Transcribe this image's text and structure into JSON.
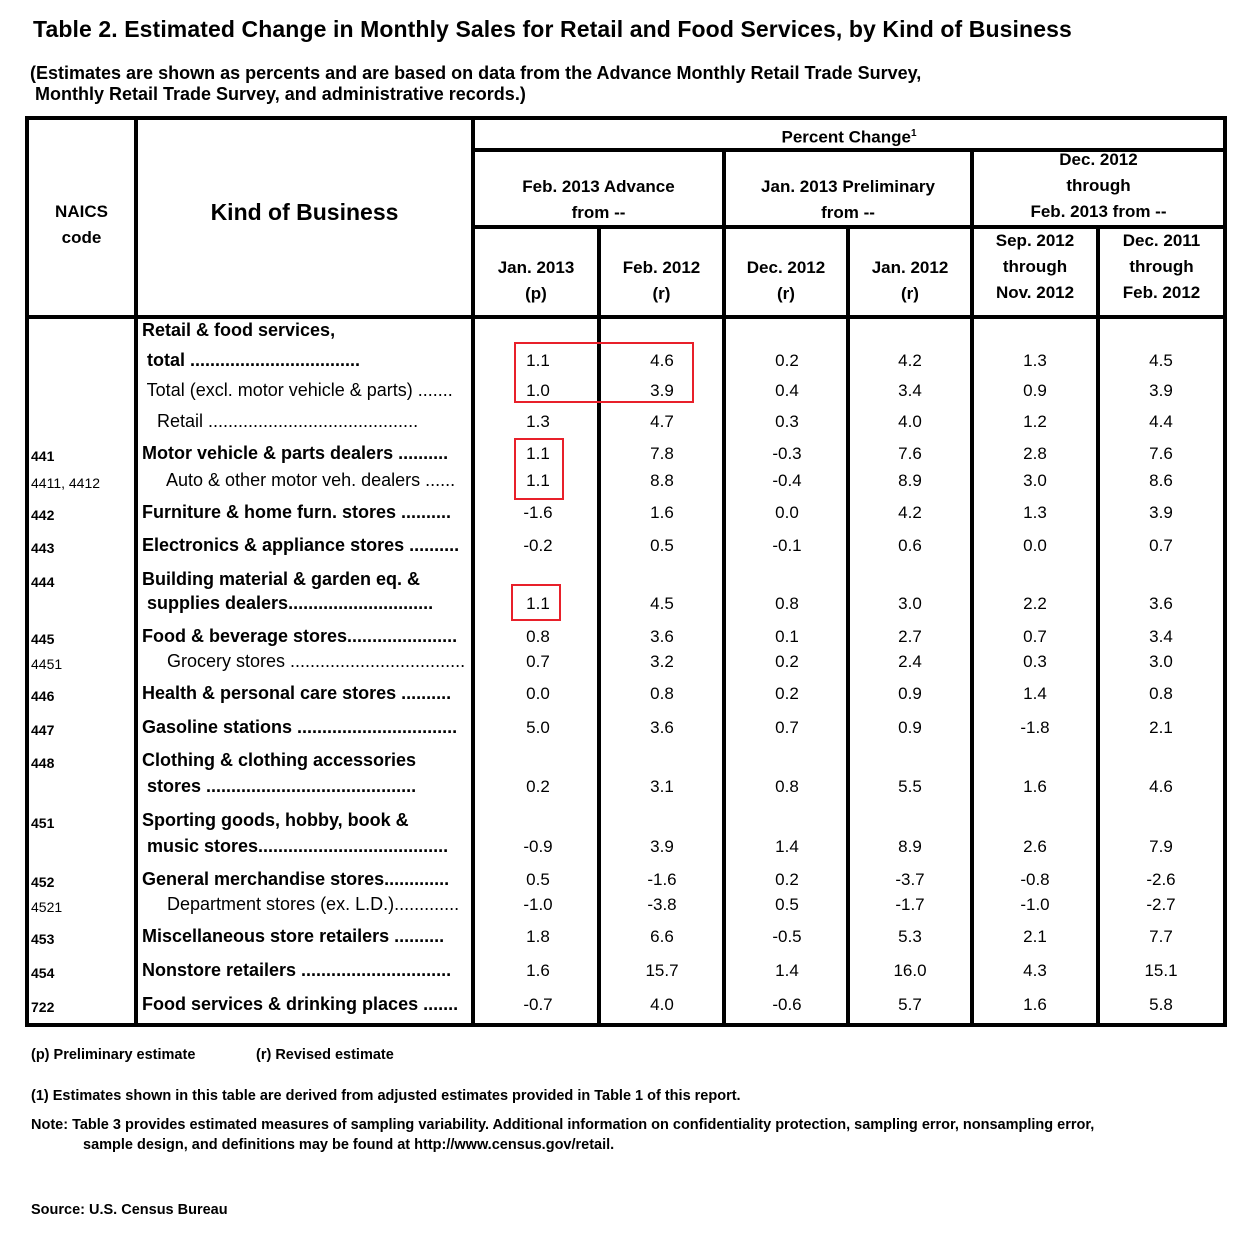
{
  "title": "Table 2.  Estimated Change in Monthly Sales for Retail and Food Services, by Kind of Business",
  "subtitle": "(Estimates are shown as percents and are based on data from the Advance Monthly Retail Trade Survey,\n Monthly Retail Trade Survey, and administrative records.)",
  "header": {
    "naics_code": [
      "NAICS",
      "code"
    ],
    "kind_of_business": "Kind of Business",
    "percent_change": "Percent Change",
    "percent_change_footnote": "1",
    "groups": [
      {
        "label": [
          "Feb. 2013 Advance",
          "from --"
        ]
      },
      {
        "label": [
          "Jan. 2013 Preliminary",
          "from --"
        ]
      },
      {
        "label": [
          "Dec. 2012",
          "through",
          "Feb. 2013 from --"
        ]
      }
    ],
    "columns": [
      {
        "label": [
          "Jan. 2013",
          "(p)"
        ]
      },
      {
        "label": [
          "Feb. 2012",
          "(r)"
        ]
      },
      {
        "label": [
          "Dec. 2012",
          "(r)"
        ]
      },
      {
        "label": [
          "Jan. 2012",
          "(r)"
        ]
      },
      {
        "label": [
          "Sep. 2012",
          "through",
          "Nov. 2012"
        ]
      },
      {
        "label": [
          "Dec. 2011",
          "through",
          "Feb. 2012"
        ]
      }
    ]
  },
  "rows": [
    {
      "code": "",
      "label": "Retail & food services,",
      "bold": true,
      "values": []
    },
    {
      "code": "",
      "label": " total ..................................",
      "bold": true,
      "values": [
        "1.1",
        "4.6",
        "0.2",
        "4.2",
        "1.3",
        "4.5"
      ]
    },
    {
      "code": "",
      "label": " Total (excl. motor vehicle & parts) .......",
      "bold": false,
      "values": [
        "1.0",
        "3.9",
        "0.4",
        "3.4",
        "0.9",
        "3.9"
      ]
    },
    {
      "code": "",
      "label": "   Retail ..........................................",
      "bold": false,
      "values": [
        "1.3",
        "4.7",
        "0.3",
        "4.0",
        "1.2",
        "4.4"
      ]
    },
    {
      "code": "441",
      "label": "Motor vehicle & parts dealers ..........",
      "bold": true,
      "values": [
        "1.1",
        "7.8",
        "-0.3",
        "7.6",
        "2.8",
        "7.6"
      ]
    },
    {
      "code": "4411, 4412",
      "label": "     Auto & other motor veh. dealers ......",
      "bold": false,
      "values": [
        "1.1",
        "8.8",
        "-0.4",
        "8.9",
        "3.0",
        "8.6"
      ]
    },
    {
      "code": "442",
      "label": "Furniture & home furn. stores ..........",
      "bold": true,
      "values": [
        "-1.6",
        "1.6",
        "0.0",
        "4.2",
        "1.3",
        "3.9"
      ]
    },
    {
      "code": "443",
      "label": "Electronics & appliance stores ..........",
      "bold": true,
      "values": [
        "-0.2",
        "0.5",
        "-0.1",
        "0.6",
        "0.0",
        "0.7"
      ]
    },
    {
      "code": "444",
      "label": "Building material & garden eq. &",
      "bold": true,
      "values": []
    },
    {
      "code": "",
      "label": " supplies dealers.............................",
      "bold": true,
      "values": [
        "1.1",
        "4.5",
        "0.8",
        "3.0",
        "2.2",
        "3.6"
      ]
    },
    {
      "code": "445",
      "label": "Food & beverage stores......................",
      "bold": true,
      "values": [
        "0.8",
        "3.6",
        "0.1",
        "2.7",
        "0.7",
        "3.4"
      ]
    },
    {
      "code": "4451",
      "label": "     Grocery stores ...................................",
      "bold": false,
      "values": [
        "0.7",
        "3.2",
        "0.2",
        "2.4",
        "0.3",
        "3.0"
      ]
    },
    {
      "code": "446",
      "label": "Health & personal care stores ..........",
      "bold": true,
      "values": [
        "0.0",
        "0.8",
        "0.2",
        "0.9",
        "1.4",
        "0.8"
      ]
    },
    {
      "code": "447",
      "label": "Gasoline stations ................................",
      "bold": true,
      "values": [
        "5.0",
        "3.6",
        "0.7",
        "0.9",
        "-1.8",
        "2.1"
      ]
    },
    {
      "code": "448",
      "label": "Clothing & clothing accessories",
      "bold": true,
      "values": []
    },
    {
      "code": "",
      "label": " stores ..........................................",
      "bold": true,
      "values": [
        "0.2",
        "3.1",
        "0.8",
        "5.5",
        "1.6",
        "4.6"
      ]
    },
    {
      "code": "451",
      "label": "Sporting goods, hobby, book &",
      "bold": true,
      "values": []
    },
    {
      "code": "",
      "label": " music stores......................................",
      "bold": true,
      "values": [
        "-0.9",
        "3.9",
        "1.4",
        "8.9",
        "2.6",
        "7.9"
      ]
    },
    {
      "code": "452",
      "label": "General merchandise stores.............",
      "bold": true,
      "values": [
        "0.5",
        "-1.6",
        "0.2",
        "-3.7",
        "-0.8",
        "-2.6"
      ]
    },
    {
      "code": "4521",
      "label": "     Department stores (ex. L.D.).............",
      "bold": false,
      "values": [
        "-1.0",
        "-3.8",
        "0.5",
        "-1.7",
        "-1.0",
        "-2.7"
      ]
    },
    {
      "code": "453",
      "label": "Miscellaneous store retailers ..........",
      "bold": true,
      "values": [
        "1.8",
        "6.6",
        "-0.5",
        "5.3",
        "2.1",
        "7.7"
      ]
    },
    {
      "code": "454",
      "label": "Nonstore retailers ..............................",
      "bold": true,
      "values": [
        "1.6",
        "15.7",
        "1.4",
        "16.0",
        "4.3",
        "15.1"
      ]
    },
    {
      "code": "722",
      "label": "Food services & drinking places .......",
      "bold": true,
      "values": [
        "-0.7",
        "4.0",
        "-0.6",
        "5.7",
        "1.6",
        "5.8"
      ]
    }
  ],
  "highlight_color": "#e8202a",
  "footnotes": {
    "legend_p": "(p)  Preliminary estimate",
    "legend_r": "(r)   Revised estimate",
    "note1": "(1)  Estimates shown in this table are derived from adjusted estimates provided  in Table 1 of this report.",
    "note_line1": "Note:  Table 3 provides estimated measures of sampling variability.  Additional information on confidentiality protection, sampling error, nonsampling error,",
    "note_line2": "sample design, and definitions may be found at  http://www.census.gov/retail.",
    "source": "Source:  U.S. Census Bureau"
  }
}
